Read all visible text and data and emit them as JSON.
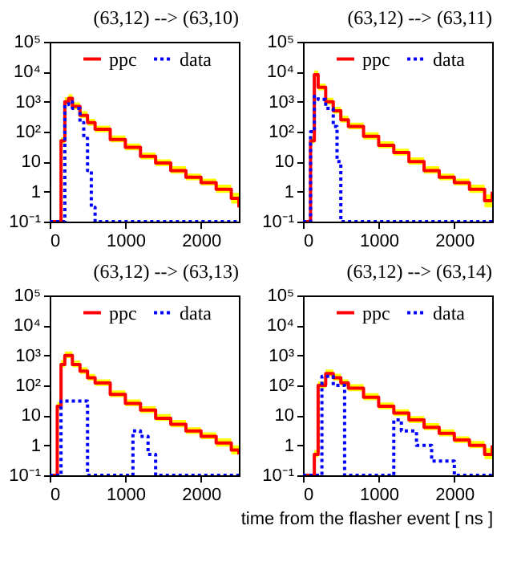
{
  "chart_data": [
    {
      "type": "step",
      "title": "(63,12) --> (63,10)",
      "xlim": [
        0,
        2500
      ],
      "xticks": [
        0,
        1000,
        2000
      ],
      "ylim": [
        0.1,
        100000
      ],
      "yticks": [
        {
          "value": 0.1,
          "label": "10⁻¹"
        },
        1,
        10,
        {
          "value": 100,
          "label": "10²"
        },
        {
          "value": 1000,
          "label": "10³"
        },
        {
          "value": 10000,
          "label": "10⁴"
        },
        {
          "value": 100000,
          "label": "10⁵"
        }
      ],
      "log": true,
      "legend": "top",
      "grid": false,
      "series": [
        {
          "name": "ppc",
          "color": "#ff0000",
          "line_style": "solid",
          "x": [
            0,
            100,
            150,
            200,
            250,
            300,
            400,
            500,
            600,
            800,
            1000,
            1200,
            1400,
            1600,
            1800,
            2000,
            2200,
            2400,
            2500
          ],
          "values": [
            0.1,
            0.1,
            50,
            1000,
            1300,
            700,
            350,
            200,
            120,
            55,
            30,
            15,
            9,
            5,
            3,
            2,
            1.2,
            0.6,
            0.3
          ],
          "lower": [
            0.1,
            0.1,
            40,
            800,
            1000,
            550,
            280,
            160,
            95,
            44,
            24,
            12,
            7,
            4,
            2.4,
            1.6,
            0.9,
            0.4,
            0.2
          ],
          "upper": [
            0.1,
            0.1,
            65,
            1400,
            1800,
            950,
            480,
            270,
            160,
            75,
            40,
            20,
            12,
            7,
            4,
            2.7,
            1.7,
            0.9,
            0.5
          ]
        },
        {
          "name": "data",
          "color": "#0000ff",
          "line_style": "dotted",
          "x": [
            0,
            150,
            200,
            250,
            300,
            400,
            450,
            500,
            550,
            600,
            2500
          ],
          "values": [
            0.1,
            0.1,
            800,
            1000,
            600,
            200,
            60,
            5,
            0.3,
            0.1,
            0.1
          ]
        }
      ]
    },
    {
      "type": "step",
      "title": "(63,12) --> (63,11)",
      "xlim": [
        0,
        2500
      ],
      "xticks": [
        0,
        1000,
        2000
      ],
      "ylim": [
        0.1,
        100000
      ],
      "yticks": [
        {
          "value": 0.1,
          "label": "10⁻¹"
        },
        1,
        10,
        {
          "value": 100,
          "label": "10²"
        },
        {
          "value": 1000,
          "label": "10³"
        },
        {
          "value": 10000,
          "label": "10⁴"
        },
        {
          "value": 100000,
          "label": "10⁵"
        }
      ],
      "log": true,
      "legend": "top",
      "grid": false,
      "series": [
        {
          "name": "ppc",
          "color": "#ff0000",
          "line_style": "solid",
          "x": [
            0,
            50,
            100,
            150,
            200,
            300,
            400,
            500,
            600,
            800,
            1000,
            1200,
            1400,
            1600,
            1800,
            2000,
            2200,
            2400,
            2500
          ],
          "values": [
            0.1,
            0.1,
            50,
            8000,
            3000,
            1000,
            500,
            250,
            150,
            70,
            35,
            20,
            10,
            5,
            3,
            2,
            1.2,
            0.5,
            1
          ],
          "lower": [
            0.1,
            0.1,
            40,
            6500,
            2400,
            800,
            400,
            200,
            120,
            55,
            28,
            16,
            8,
            4,
            2.4,
            1.6,
            0.9,
            0.3,
            0.7
          ],
          "upper": [
            0.1,
            0.1,
            70,
            11000,
            4000,
            1350,
            680,
            340,
            200,
            95,
            48,
            27,
            14,
            7,
            4,
            2.7,
            1.7,
            0.8,
            1.4
          ]
        },
        {
          "name": "data",
          "color": "#0000ff",
          "line_style": "dotted",
          "x": [
            0,
            100,
            150,
            200,
            300,
            400,
            450,
            500,
            2500
          ],
          "values": [
            0.1,
            100,
            1500,
            1200,
            600,
            150,
            10,
            0.1,
            0.1
          ]
        }
      ]
    },
    {
      "type": "step",
      "title": "(63,12) --> (63,13)",
      "xlim": [
        0,
        2500
      ],
      "xticks": [
        0,
        1000,
        2000
      ],
      "ylim": [
        0.1,
        100000
      ],
      "yticks": [
        {
          "value": 0.1,
          "label": "10⁻¹"
        },
        1,
        10,
        {
          "value": 100,
          "label": "10²"
        },
        {
          "value": 1000,
          "label": "10³"
        },
        {
          "value": 10000,
          "label": "10⁴"
        },
        {
          "value": 100000,
          "label": "10⁵"
        }
      ],
      "log": true,
      "legend": "top",
      "grid": false,
      "series": [
        {
          "name": "ppc",
          "color": "#ff0000",
          "line_style": "solid",
          "x": [
            0,
            50,
            100,
            150,
            200,
            300,
            400,
            500,
            600,
            800,
            1000,
            1200,
            1400,
            1600,
            1800,
            2000,
            2200,
            2400,
            2500
          ],
          "values": [
            0.1,
            0.1,
            20,
            500,
            1000,
            500,
            300,
            180,
            120,
            50,
            25,
            15,
            8,
            5,
            3,
            2,
            1.2,
            0.7,
            0.5
          ],
          "lower": [
            0.1,
            0.1,
            15,
            400,
            800,
            400,
            240,
            145,
            95,
            40,
            20,
            12,
            6.5,
            4,
            2.4,
            1.6,
            0.9,
            0.5,
            0.35
          ],
          "upper": [
            0.1,
            0.1,
            28,
            700,
            1350,
            680,
            400,
            240,
            160,
            68,
            34,
            20,
            11,
            7,
            4,
            2.7,
            1.7,
            1,
            0.8
          ]
        },
        {
          "name": "data",
          "color": "#0000ff",
          "line_style": "dotted",
          "x": [
            0,
            100,
            150,
            450,
            500,
            950,
            1100,
            1200,
            1300,
            1400,
            2500
          ],
          "values": [
            0.1,
            0.1,
            30,
            30,
            0.1,
            0.1,
            3,
            2,
            0.5,
            0.1,
            0.1
          ]
        }
      ]
    },
    {
      "type": "step",
      "title": "(63,12) --> (63,14)",
      "xlabel": "time from the flasher event [ ns ]",
      "xlim": [
        0,
        2500
      ],
      "xticks": [
        0,
        1000,
        2000
      ],
      "ylim": [
        0.1,
        100000
      ],
      "yticks": [
        {
          "value": 0.1,
          "label": "10⁻¹"
        },
        1,
        10,
        {
          "value": 100,
          "label": "10²"
        },
        {
          "value": 1000,
          "label": "10³"
        },
        {
          "value": 10000,
          "label": "10⁴"
        },
        {
          "value": 100000,
          "label": "10⁵"
        }
      ],
      "log": true,
      "legend": "top",
      "grid": false,
      "series": [
        {
          "name": "ppc",
          "color": "#ff0000",
          "line_style": "solid",
          "x": [
            0,
            150,
            200,
            300,
            400,
            500,
            600,
            800,
            1000,
            1200,
            1400,
            1600,
            1800,
            2000,
            2200,
            2400,
            2500
          ],
          "values": [
            0.1,
            0.5,
            100,
            250,
            180,
            120,
            80,
            40,
            20,
            12,
            7,
            4,
            2.5,
            1.5,
            1,
            0.5,
            1
          ],
          "lower": [
            0.1,
            0.4,
            80,
            200,
            145,
            95,
            64,
            32,
            16,
            9.5,
            5.5,
            3.2,
            2,
            1.2,
            0.8,
            0.35,
            0.7
          ],
          "upper": [
            0.1,
            0.7,
            135,
            340,
            245,
            160,
            110,
            55,
            27,
            16,
            9.5,
            5.5,
            3.4,
            2,
            1.4,
            0.8,
            1.4
          ]
        },
        {
          "name": "data",
          "color": "#0000ff",
          "line_style": "dotted",
          "x": [
            0,
            150,
            250,
            400,
            500,
            550,
            1150,
            1200,
            1300,
            1500,
            1700,
            2000,
            2500
          ],
          "values": [
            0.1,
            0.1,
            200,
            100,
            100,
            0.1,
            0.1,
            7,
            3,
            1,
            0.3,
            0.1,
            0.1
          ]
        }
      ]
    }
  ]
}
